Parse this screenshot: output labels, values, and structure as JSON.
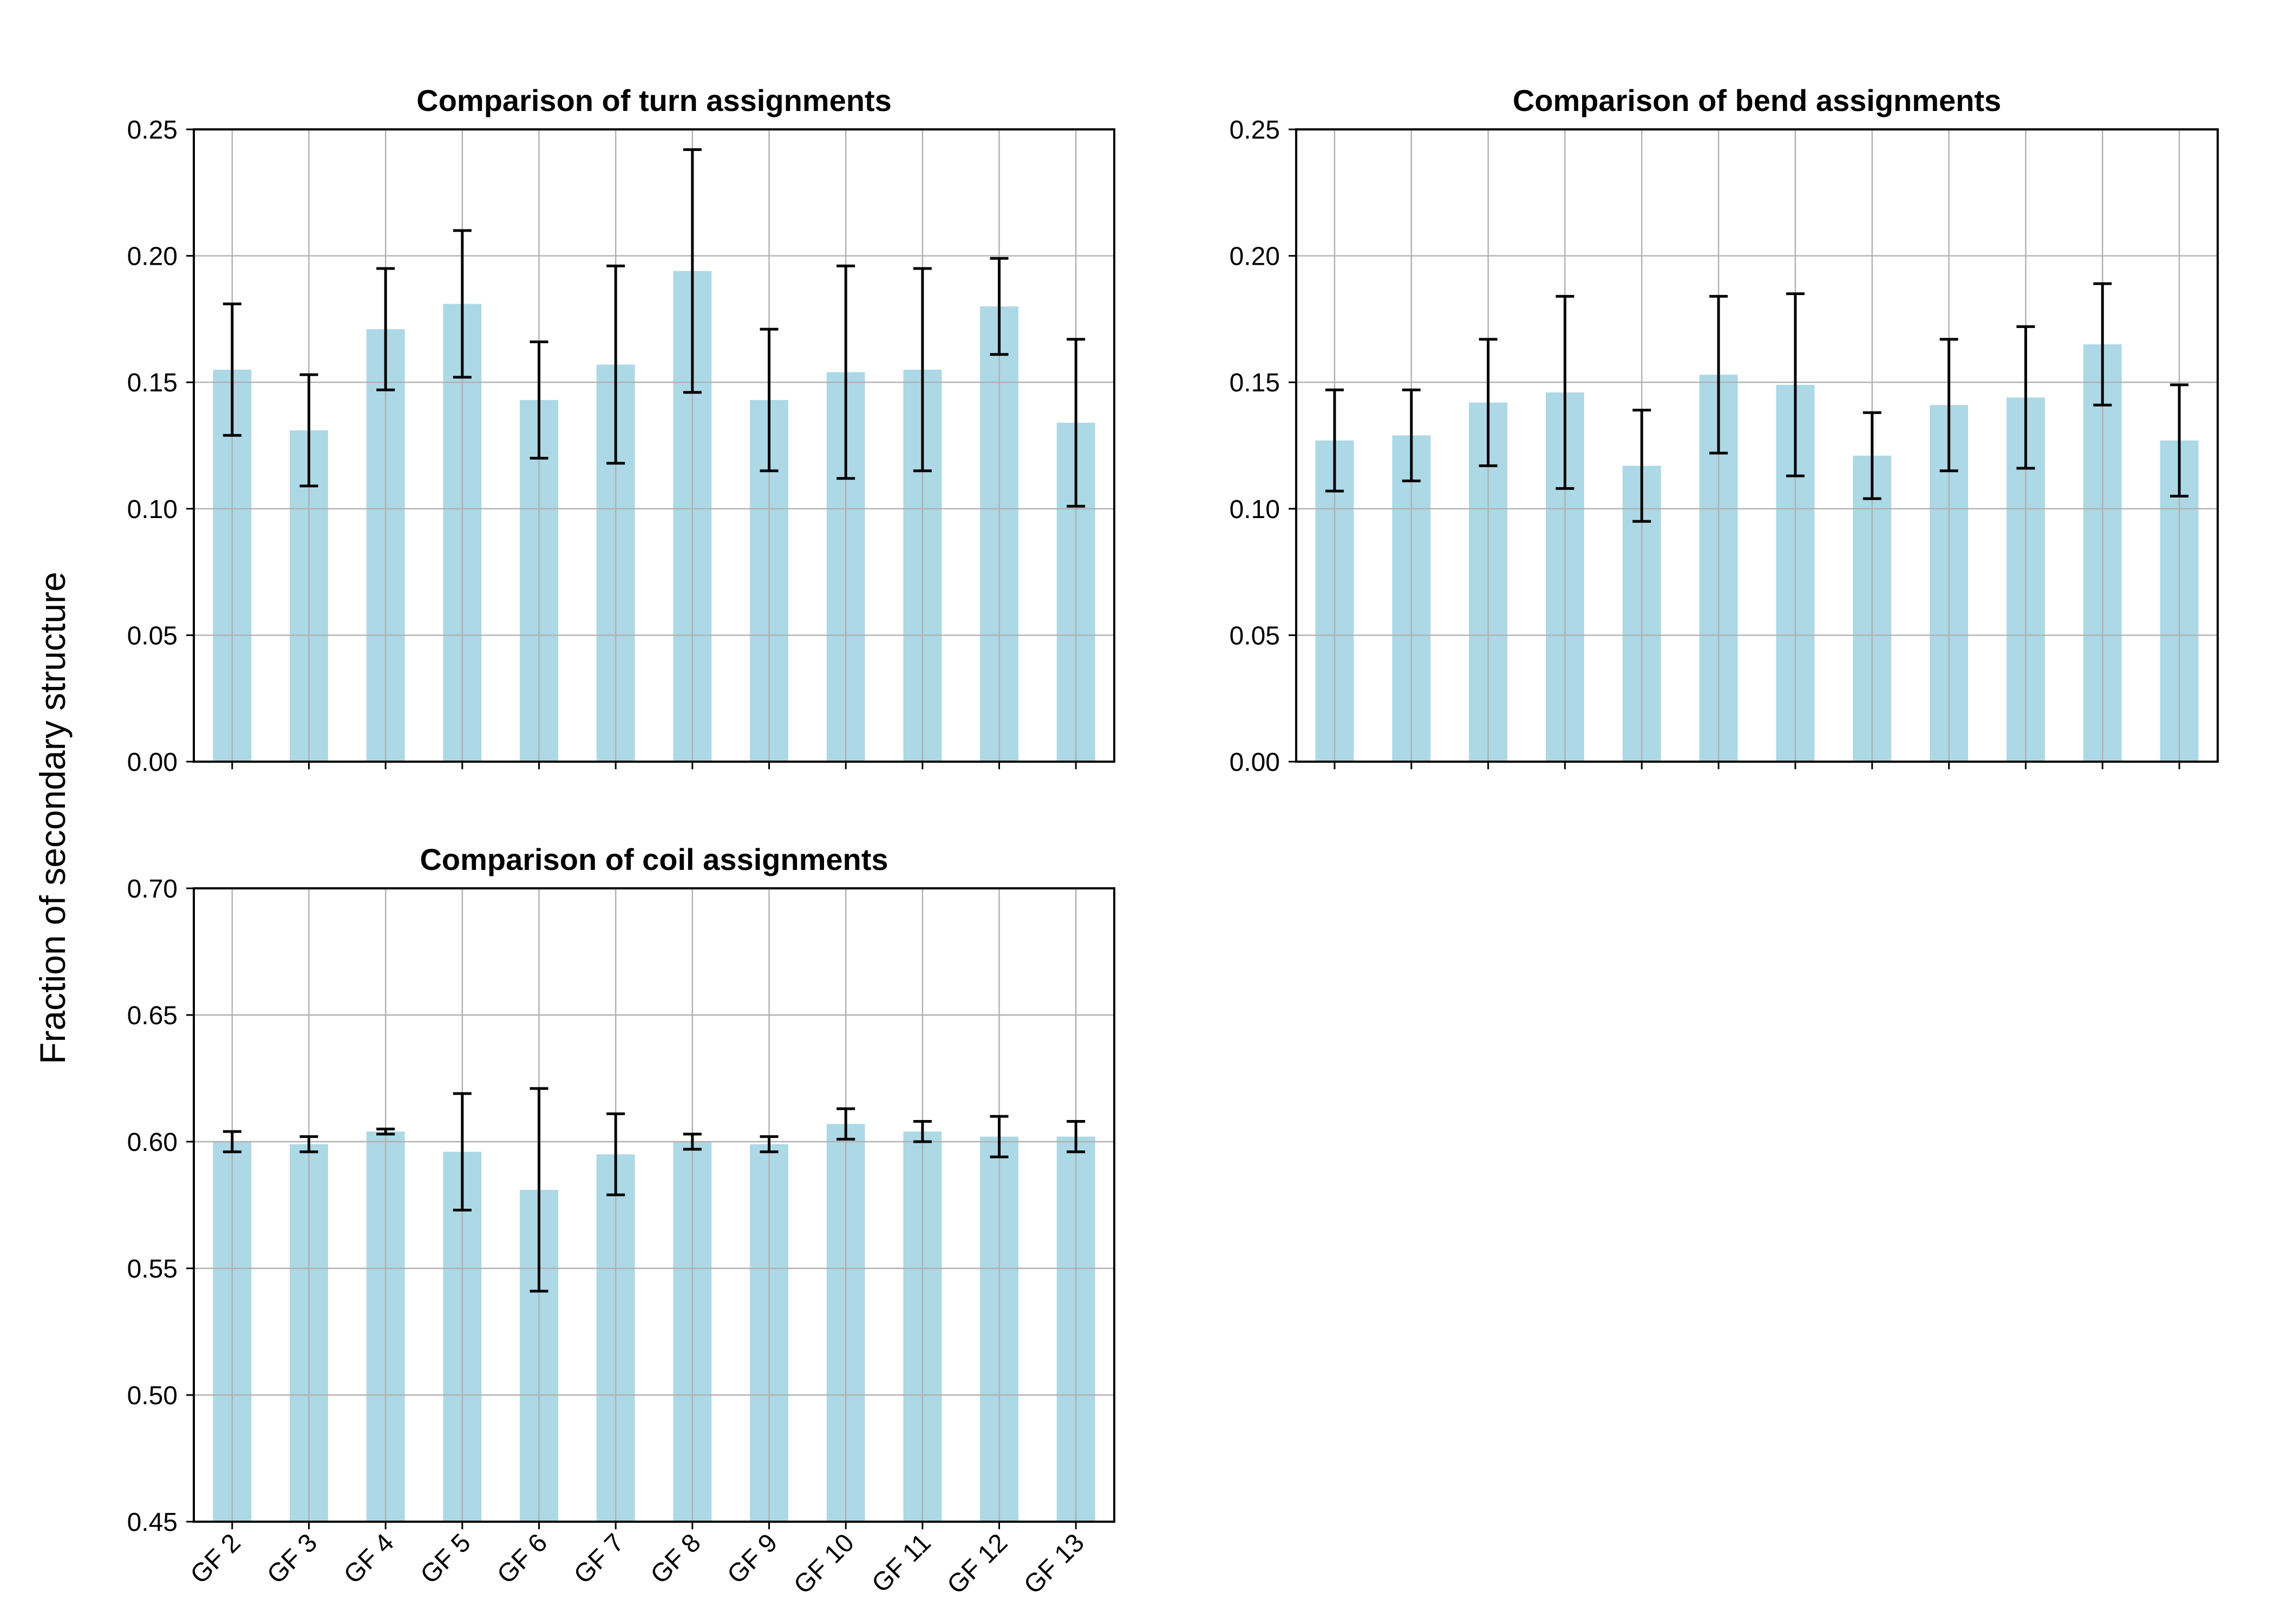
{
  "figure": {
    "ylabel": "Fraction of secondary structure",
    "bar_color": "#add8e6",
    "error_color": "#000000",
    "grid_color": "#b0b0b0"
  },
  "chart_data": [
    {
      "type": "bar",
      "title": "Comparison of turn assignments",
      "categories": [
        "GF 2",
        "GF 3",
        "GF 4",
        "GF 5",
        "GF 6",
        "GF 7",
        "GF 8",
        "GF 9",
        "GF 10",
        "GF 11",
        "GF 12",
        "GF 13"
      ],
      "values": [
        0.155,
        0.131,
        0.171,
        0.181,
        0.143,
        0.157,
        0.194,
        0.143,
        0.154,
        0.155,
        0.18,
        0.134
      ],
      "errors": [
        0.026,
        0.022,
        0.024,
        0.029,
        0.023,
        0.039,
        0.048,
        0.028,
        0.042,
        0.04,
        0.019,
        0.033
      ],
      "ylim": [
        0.0,
        0.25
      ],
      "yticks": [
        "0.00",
        "0.05",
        "0.10",
        "0.15",
        "0.20",
        "0.25"
      ],
      "grid": true,
      "show_xticklabels": false
    },
    {
      "type": "bar",
      "title": "Comparison of bend assignments",
      "categories": [
        "GF 2",
        "GF 3",
        "GF 4",
        "GF 5",
        "GF 6",
        "GF 7",
        "GF 8",
        "GF 9",
        "GF 10",
        "GF 11",
        "GF 12",
        "GF 13"
      ],
      "values": [
        0.127,
        0.129,
        0.142,
        0.146,
        0.117,
        0.153,
        0.149,
        0.121,
        0.141,
        0.144,
        0.165,
        0.127
      ],
      "errors": [
        0.02,
        0.018,
        0.025,
        0.038,
        0.022,
        0.031,
        0.036,
        0.017,
        0.026,
        0.028,
        0.024,
        0.022
      ],
      "ylim": [
        0.0,
        0.25
      ],
      "yticks": [
        "0.00",
        "0.05",
        "0.10",
        "0.15",
        "0.20",
        "0.25"
      ],
      "grid": true,
      "show_xticklabels": false
    },
    {
      "type": "bar",
      "title": "Comparison of coil assignments",
      "categories": [
        "GF 2",
        "GF 3",
        "GF 4",
        "GF 5",
        "GF 6",
        "GF 7",
        "GF 8",
        "GF 9",
        "GF 10",
        "GF 11",
        "GF 12",
        "GF 13"
      ],
      "values": [
        0.6,
        0.599,
        0.604,
        0.596,
        0.581,
        0.595,
        0.6,
        0.599,
        0.607,
        0.604,
        0.602,
        0.602
      ],
      "errors": [
        0.004,
        0.003,
        0.001,
        0.023,
        0.04,
        0.016,
        0.003,
        0.003,
        0.006,
        0.004,
        0.008,
        0.006
      ],
      "ylim": [
        0.45,
        0.7
      ],
      "yticks": [
        "0.45",
        "0.50",
        "0.55",
        "0.60",
        "0.65",
        "0.70"
      ],
      "grid": true,
      "show_xticklabels": true
    }
  ]
}
